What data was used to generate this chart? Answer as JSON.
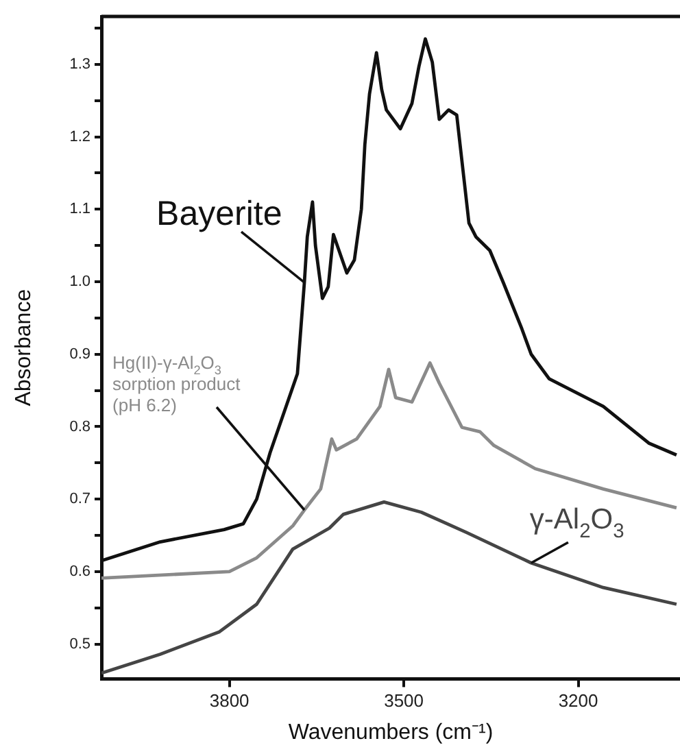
{
  "chart_data": {
    "type": "line",
    "xlabel": "Wavenumbers (cm⁻¹)",
    "ylabel": "Absorbance",
    "xlim": [
      4020,
      3025
    ],
    "xticks": [
      3800,
      3500,
      3200
    ],
    "ylim": [
      0.452,
      1.366
    ],
    "yticks": [
      0.5,
      {
        "value": 0.55,
        "label": null
      },
      0.6,
      {
        "value": 0.65,
        "label": null
      },
      0.7,
      {
        "value": 0.75,
        "label": null
      },
      0.8,
      {
        "value": 0.85,
        "label": null
      },
      0.9,
      {
        "value": 0.95,
        "label": null
      },
      {
        "value": 1,
        "label": "1.0"
      },
      {
        "value": 1.05,
        "label": null
      },
      1.1,
      {
        "value": 1.15,
        "label": null
      },
      1.2,
      {
        "value": 1.25,
        "label": null
      },
      1.3,
      {
        "value": 1.35,
        "label": null
      }
    ],
    "grid": false,
    "legend": false,
    "series": [
      {
        "name": "Bayerite",
        "color": "#111111",
        "x": [
          4020,
          3919,
          3809,
          3776,
          3753,
          3730,
          3683,
          3671,
          3666,
          3657,
          3652,
          3640,
          3630,
          3621,
          3598,
          3585,
          3573,
          3567,
          3559,
          3547,
          3538,
          3530,
          3506,
          3486,
          3474,
          3463,
          3451,
          3439,
          3423,
          3409,
          3396,
          3388,
          3376,
          3352,
          3329,
          3297,
          3281,
          3250,
          3157,
          3078,
          3031
        ],
        "values": [
          0.615,
          0.641,
          0.658,
          0.666,
          0.7,
          0.764,
          0.873,
          0.999,
          1.062,
          1.11,
          1.05,
          0.977,
          0.993,
          1.065,
          1.012,
          1.03,
          1.1,
          1.189,
          1.259,
          1.316,
          1.265,
          1.237,
          1.211,
          1.246,
          1.297,
          1.335,
          1.303,
          1.224,
          1.237,
          1.23,
          1.138,
          1.081,
          1.062,
          1.043,
          0.999,
          0.935,
          0.9,
          0.866,
          0.828,
          0.777,
          0.761
        ]
      },
      {
        "name": "Hg(II)-γ-Al$_{2}$O$_{3}$ sorption product (pH 6.2)",
        "color": "#8a8a8a",
        "x": [
          4020,
          3800,
          3753,
          3691,
          3671,
          3643,
          3624,
          3616,
          3581,
          3541,
          3526,
          3514,
          3486,
          3455,
          3439,
          3400,
          3369,
          3345,
          3274,
          3157,
          3031
        ],
        "values": [
          0.591,
          0.6,
          0.619,
          0.663,
          0.685,
          0.714,
          0.783,
          0.768,
          0.783,
          0.828,
          0.879,
          0.84,
          0.834,
          0.888,
          0.86,
          0.799,
          0.793,
          0.774,
          0.742,
          0.714,
          0.688
        ]
      },
      {
        "name": "γ-Al$_{2}$O$_{3}$",
        "color": "#454545",
        "x": [
          4020,
          3919,
          3817,
          3753,
          3691,
          3628,
          3604,
          3534,
          3470,
          3392,
          3281,
          3157,
          3031
        ],
        "values": [
          0.46,
          0.486,
          0.517,
          0.555,
          0.631,
          0.66,
          0.679,
          0.696,
          0.682,
          0.654,
          0.612,
          0.578,
          0.555
        ]
      }
    ]
  }
}
